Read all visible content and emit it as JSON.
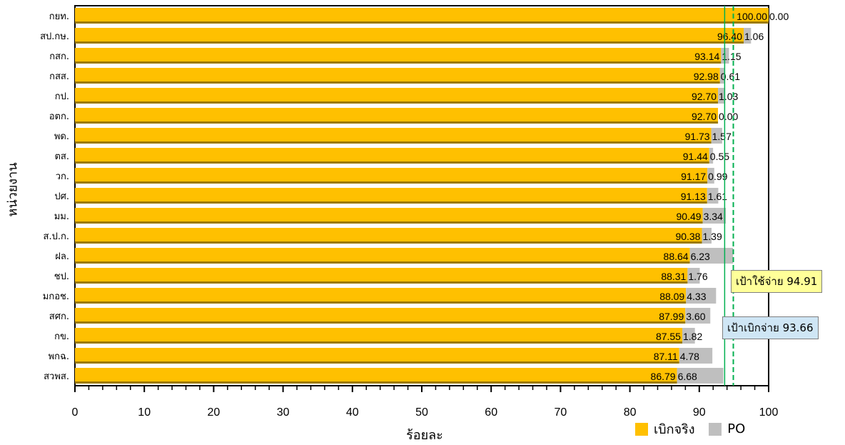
{
  "chart_data": {
    "type": "bar",
    "orientation": "horizontal",
    "stacked": true,
    "categories": [
      "กยท.",
      "สป.กษ.",
      "กสก.",
      "กสส.",
      "กป.",
      "อตก.",
      "พด.",
      "ตส.",
      "วก.",
      "ปศ.",
      "มม.",
      "ส.ป.ก.",
      "ฝล.",
      "ชป.",
      "มกอช.",
      "สศก.",
      "กข.",
      "พกฉ.",
      "สวพส."
    ],
    "series": [
      {
        "name": "เบิกจริง",
        "color": "#ffc000",
        "values": [
          100.0,
          96.4,
          93.14,
          92.98,
          92.7,
          92.7,
          91.73,
          91.44,
          91.17,
          91.13,
          90.49,
          90.38,
          88.64,
          88.31,
          88.09,
          87.99,
          87.55,
          87.11,
          86.79
        ],
        "labels": [
          "100.00",
          "96.40",
          "93.14",
          "92.98",
          "92.70",
          "92.70",
          "91.73",
          "91.44",
          "91.17",
          "91.13",
          "90.49",
          "90.38",
          "88.64",
          "88.31",
          "88.09",
          "87.99",
          "87.55",
          "87.11",
          "86.79"
        ]
      },
      {
        "name": "PO",
        "color": "#bfbfbf",
        "values": [
          0.0,
          1.06,
          1.15,
          0.61,
          1.03,
          0.0,
          1.57,
          0.55,
          0.99,
          1.61,
          3.34,
          1.39,
          6.23,
          1.76,
          4.33,
          3.6,
          1.82,
          4.78,
          6.68
        ],
        "labels": [
          "0.00",
          "1.06",
          "1.15",
          "0.61",
          "1.03",
          "0.00",
          "1.57",
          "0.55",
          "0.99",
          "1.61",
          "3.34",
          "1.39",
          "6.23",
          "1.76",
          "4.33",
          "3.60",
          "1.82",
          "4.78",
          "6.68"
        ]
      }
    ],
    "xlabel": "ร้อยละ",
    "ylabel": "หน่วยงาน",
    "xlim": [
      0,
      100
    ],
    "xticks": [
      "0",
      "10",
      "20",
      "30",
      "40",
      "50",
      "60",
      "70",
      "80",
      "90",
      "100"
    ],
    "reference_lines": [
      {
        "value": 94.91,
        "label": "เป้าใช้จ่าย 94.91",
        "color": "#00b050",
        "style": "dashed"
      },
      {
        "value": 93.66,
        "label": "เป้าเบิกจ่าย 93.66",
        "color": "#00b050",
        "style": "solid"
      }
    ],
    "legend_position": "bottom-right",
    "grid": false
  }
}
